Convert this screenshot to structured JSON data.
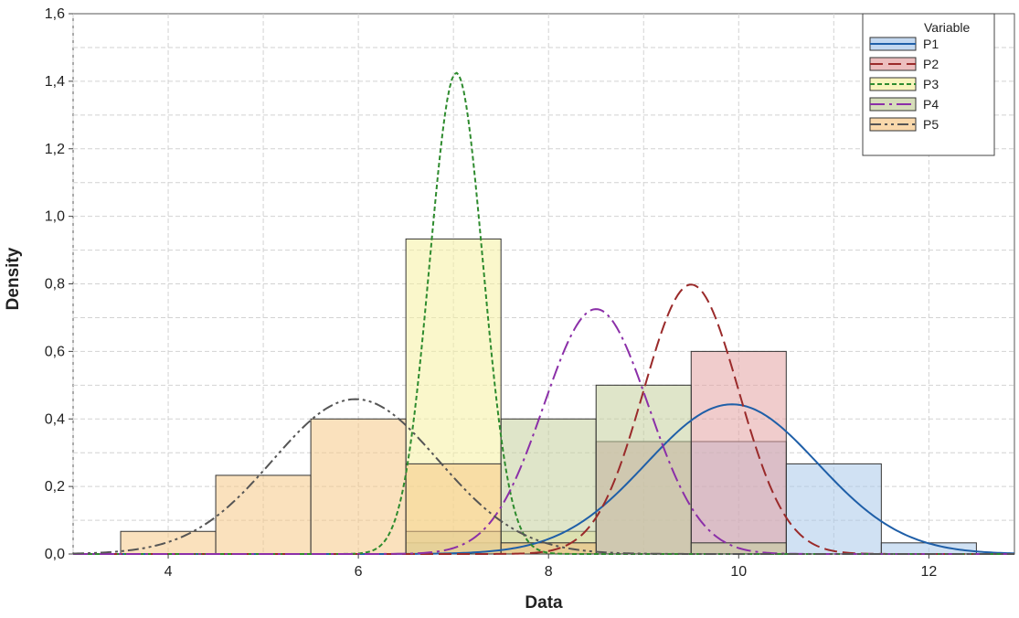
{
  "chart_data": {
    "type": "histogram",
    "title": "",
    "xlabel": "Data",
    "ylabel": "Density",
    "xlim": [
      3.0,
      12.9
    ],
    "ylim": [
      0,
      1.6
    ],
    "x_ticks": [
      4,
      6,
      8,
      10,
      12
    ],
    "x_tick_labels": [
      "4",
      "6",
      "8",
      "10",
      "12"
    ],
    "y_ticks": [
      0,
      0.2,
      0.4,
      0.6,
      0.8,
      1.0,
      1.2,
      1.4,
      1.6
    ],
    "y_tick_labels": [
      "0,0",
      "0,2",
      "0,4",
      "0,6",
      "0,8",
      "1,0",
      "1,2",
      "1,4",
      "1,6"
    ],
    "grid": true,
    "legend": {
      "title": "Variable",
      "position": "top-right"
    },
    "bin_width": 1,
    "series": [
      {
        "name": "P1",
        "color": "#1f5fa8",
        "fill": "#a9c8ea",
        "line_style": "solid",
        "bins": [
          {
            "x0": 6.5,
            "density": 0.033
          },
          {
            "x0": 7.5,
            "density": 0.033
          },
          {
            "x0": 8.5,
            "density": 0.333
          },
          {
            "x0": 9.5,
            "density": 0.333
          },
          {
            "x0": 10.5,
            "density": 0.267
          },
          {
            "x0": 11.5,
            "density": 0.033
          }
        ],
        "curve": {
          "mean": 9.93,
          "sd": 0.9
        }
      },
      {
        "name": "P2",
        "color": "#9a2a2a",
        "fill": "#e4a3a3",
        "line_style": "dashed",
        "bins": [
          {
            "x0": 7.5,
            "density": 0.033
          },
          {
            "x0": 8.5,
            "density": 0.333
          },
          {
            "x0": 9.5,
            "density": 0.6
          }
        ],
        "curve": {
          "mean": 9.5,
          "sd": 0.5
        }
      },
      {
        "name": "P3",
        "color": "#2e8b2e",
        "fill": "#f5f0a0",
        "line_style": "short-dashed",
        "bins": [
          {
            "x0": 6.5,
            "density": 0.933
          },
          {
            "x0": 7.5,
            "density": 0.067
          }
        ],
        "curve": {
          "mean": 7.03,
          "sd": 0.28
        }
      },
      {
        "name": "P4",
        "color": "#8b2fa8",
        "fill": "#c4cf9c",
        "line_style": "dash-dot",
        "bins": [
          {
            "x0": 6.5,
            "density": 0.067
          },
          {
            "x0": 7.5,
            "density": 0.4
          },
          {
            "x0": 8.5,
            "density": 0.5
          },
          {
            "x0": 9.5,
            "density": 0.033
          }
        ],
        "curve": {
          "mean": 8.5,
          "sd": 0.55
        }
      },
      {
        "name": "P5",
        "color": "#555555",
        "fill": "#f6c887",
        "line_style": "dash-dot-dot",
        "bins": [
          {
            "x0": 3.5,
            "density": 0.067
          },
          {
            "x0": 4.5,
            "density": 0.233
          },
          {
            "x0": 5.5,
            "density": 0.4
          },
          {
            "x0": 6.5,
            "density": 0.267
          },
          {
            "x0": 7.5,
            "density": 0.033
          }
        ],
        "curve": {
          "mean": 5.97,
          "sd": 0.87
        }
      }
    ]
  }
}
